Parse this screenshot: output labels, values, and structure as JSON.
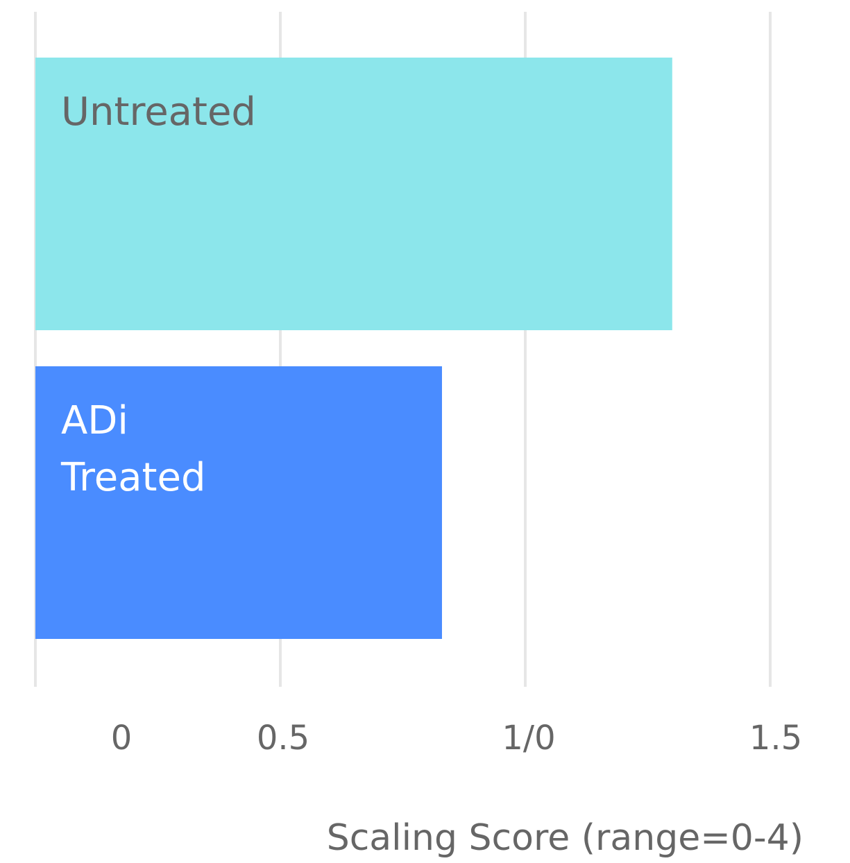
{
  "chart_data": {
    "type": "bar",
    "orientation": "horizontal",
    "categories": [
      "Untreated",
      "ADi Treated"
    ],
    "values": [
      1.3,
      0.83
    ],
    "colors": [
      "#8ce6eb",
      "#4a8cff"
    ],
    "label_colors": [
      "#666666",
      "#ffffff"
    ],
    "xlabel": "Scaling Score (range=0-4)",
    "xlim": [
      0,
      1.5
    ],
    "xticks": [
      0,
      0.5,
      {
        "value": 1,
        "label": "1/0"
      },
      1.5
    ],
    "grid": true
  }
}
